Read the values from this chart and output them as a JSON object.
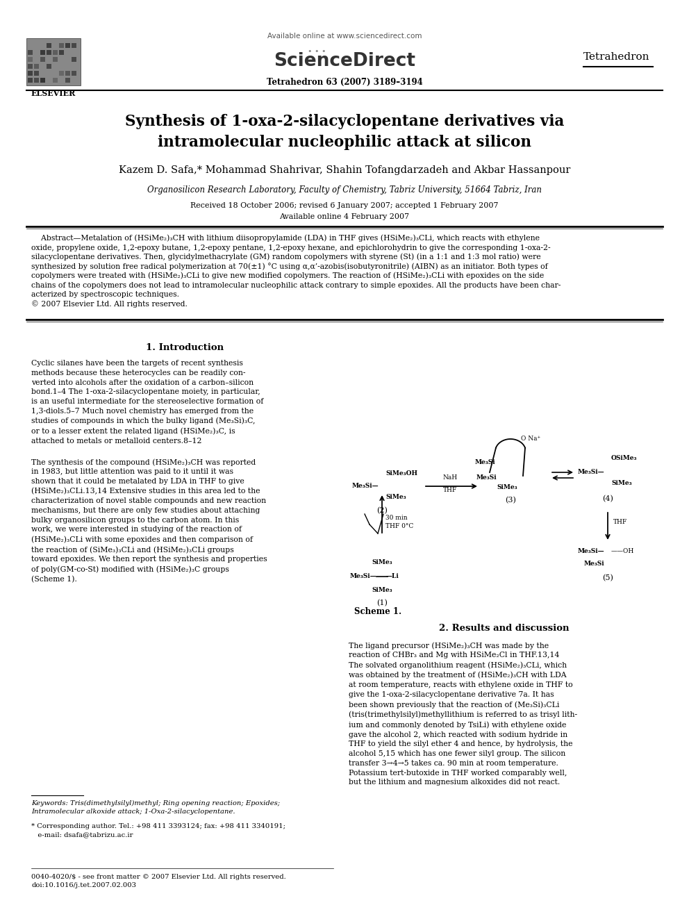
{
  "title_line1": "Synthesis of 1-oxa-2-silacyclopentane derivatives via",
  "title_line2": "intramolecular nucleophilic attack at silicon",
  "authors": "Kazem D. Safa,* Mohammad Shahrivar, Shahin Tofangdarzadeh and Akbar Hassanpour",
  "affiliation": "Organosilicon Research Laboratory, Faculty of Chemistry, Tabriz University, 51664 Tabriz, Iran",
  "received": "Received 18 October 2006; revised 6 January 2007; accepted 1 February 2007",
  "available_date": "Available online 4 February 2007",
  "journal_name": "Tetrahedron",
  "journal_info": "Tetrahedron 63 (2007) 3189–3194",
  "available_online": "Available online at www.sciencedirect.com",
  "sciencedirect": "ScienceDirect",
  "elsevier": "ELSEVIER",
  "abstract_line1": "    Abstract—Metalation of (HSiMe₂)₃CH with lithium diisopropylamide (LDA) in THF gives (HSiMe₂)₃CLi, which reacts with ethylene",
  "abstract_line2": "oxide, propylene oxide, 1,2-epoxy butane, 1,2-epoxy pentane, 1,2-epoxy hexane, and epichlorohydrin to give the corresponding 1-oxa-2-",
  "abstract_line3": "silacyclopentane derivatives. Then, glycidylmethacrylate (GM) random copolymers with styrene (St) (in a 1:1 and 1:3 mol ratio) were",
  "abstract_line4": "synthesized by solution free radical polymerization at 70(±1) °C using α,α’-azobis(isobutyronitrile) (AIBN) as an initiator. Both types of",
  "abstract_line5": "copolymers were treated with (HSiMe₂)₃CLi to give new modified copolymers. The reaction of (HSiMe₂)₃CLi with epoxides on the side",
  "abstract_line6": "chains of the copolymers does not lead to intramolecular nucleophilic attack contrary to simple epoxides. All the products have been char-",
  "abstract_line7": "acterized by spectroscopic techniques.",
  "abstract_line8": "© 2007 Elsevier Ltd. All rights reserved.",
  "sec1_title": "1. Introduction",
  "sec1_p1": "Cyclic silanes have been the targets of recent synthesis\nmethods because these heterocycles can be readily con-\nverted into alcohols after the oxidation of a carbon–silicon\nbond.1–4 The 1-oxa-2-silacyclopentane moiety, in particular,\nis an useful intermediate for the stereoselective formation of\n1,3-diols.5–7 Much novel chemistry has emerged from the\nstudies of compounds in which the bulky ligand (Me₃Si)₃C,\nor to a lesser extent the related ligand (HSiMe₂)₃C, is\nattached to metals or metalloid centers.8–12",
  "sec1_p2": "The synthesis of the compound (HSiMe₂)₃CH was reported\nin 1983, but little attention was paid to it until it was\nshown that it could be metalated by LDA in THF to give\n(HSiMe₂)₃CLi.13,14 Extensive studies in this area led to the\ncharacterization of novel stable compounds and new reaction\nmechanisms, but there are only few studies about attaching\nbulky organosilicon groups to the carbon atom. In this\nwork, we were interested in studying of the reaction of\n(HSiMe₂)₃CLi with some epoxides and then comparison of\nthe reaction of (SiMe₃)₃CLi and (HSiMe₂)₃CLi groups\ntoward epoxides. We then report the synthesis and properties\nof poly(GM-co-St) modified with (HSiMe₂)₃C groups\n(Scheme 1).",
  "sec2_title": "2. Results and discussion",
  "sec2_text": "The ligand precursor (HSiMe₂)₃CH was made by the\nreaction of CHBr₃ and Mg with HSiMe₂Cl in THF.13,14\nThe solvated organolithium reagent (HSiMe₂)₃CLi, which\nwas obtained by the treatment of (HSiMe₂)₃CH with LDA\nat room temperature, reacts with ethylene oxide in THF to\ngive the 1-oxa-2-silacyclopentane derivative 7a. It has\nbeen shown previously that the reaction of (Me₃Si)₃CLi\n(tris(trimethylsilyl)methyllithium is referred to as trisyl lith-\nium and commonly denoted by TsiLi) with ethylene oxide\ngave the alcohol 2, which reacted with sodium hydride in\nTHF to yield the silyl ether 4 and hence, by hydrolysis, the\nalcohol 5,15 which has one fewer silyl group. The silicon\ntransfer 3→4→5 takes ca. 90 min at room temperature.\nPotassium tert-butoxide in THF worked comparably well,\nbut the lithium and magnesium alkoxides did not react.",
  "keywords": "Keywords: Tris(dimethylsilyl)methyl; Ring opening reaction; Epoxides;\nIntramolecular alkoxide attack; 1-Oxa-2-silacyclopentane.",
  "corresponding": "* Corresponding author. Tel.: +98 411 3393124; fax: +98 411 3340191;\n   e-mail: dsafa@tabrizu.ac.ir",
  "footer": "0040-4020/$ - see front matter © 2007 Elsevier Ltd. All rights reserved.\ndoi:10.1016/j.tet.2007.02.003",
  "bg": "#ffffff",
  "fg": "#000000"
}
